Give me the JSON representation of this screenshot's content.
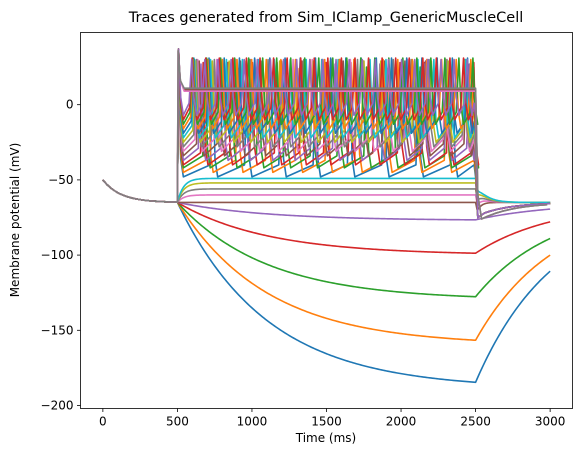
{
  "chart_data": {
    "type": "line",
    "title": "Traces generated from Sim_IClamp_GenericMuscleCell",
    "xlabel": "Time (ms)",
    "ylabel": "Membrane potential (mV)",
    "xlim": [
      -150,
      3150
    ],
    "ylim": [
      -202,
      48
    ],
    "xticks": [
      0,
      500,
      1000,
      1500,
      2000,
      2500,
      3000
    ],
    "yticks": [
      -200,
      -150,
      -100,
      -50,
      0
    ],
    "grid": false,
    "legend": "none",
    "stimulus": {
      "start": 500,
      "end": 2500
    },
    "initial_potential": -50,
    "rest_potential": -65,
    "colors": [
      "#1f77b4",
      "#ff7f0e",
      "#2ca02c",
      "#d62728",
      "#9467bd",
      "#8c564b",
      "#e377c2",
      "#7f7f7f",
      "#bcbd22",
      "#17becf"
    ],
    "traces": [
      {
        "kind": "hyper",
        "plateau": -189,
        "color": "#1f77b4"
      },
      {
        "kind": "hyper",
        "plateau": -160,
        "color": "#ff7f0e"
      },
      {
        "kind": "hyper",
        "plateau": -130,
        "color": "#2ca02c"
      },
      {
        "kind": "hyper",
        "plateau": -100,
        "color": "#d62728"
      },
      {
        "kind": "hyper",
        "plateau": -77,
        "color": "#9467bd"
      },
      {
        "kind": "flat",
        "plateau": -65,
        "color": "#8c564b"
      },
      {
        "kind": "flat",
        "plateau": -60,
        "color": "#e377c2"
      },
      {
        "kind": "flat",
        "plateau": -56,
        "color": "#7f7f7f"
      },
      {
        "kind": "flat",
        "plateau": -52,
        "color": "#bcbd22"
      },
      {
        "kind": "flat",
        "plateau": -49,
        "color": "#17becf"
      },
      {
        "kind": "spike",
        "period": 230,
        "trough": -48,
        "peak": 22,
        "color": "#1f77b4"
      },
      {
        "kind": "spike",
        "period": 200,
        "trough": -45,
        "peak": 24,
        "color": "#ff7f0e"
      },
      {
        "kind": "spike",
        "period": 180,
        "trough": -42,
        "peak": 25,
        "color": "#2ca02c"
      },
      {
        "kind": "spike",
        "period": 165,
        "trough": -40,
        "peak": 28,
        "color": "#d62728"
      },
      {
        "kind": "spike",
        "period": 150,
        "trough": -37,
        "peak": 27,
        "color": "#9467bd"
      },
      {
        "kind": "spike",
        "period": 138,
        "trough": -34,
        "peak": 29,
        "color": "#8c564b"
      },
      {
        "kind": "spike",
        "period": 128,
        "trough": -31,
        "peak": 30,
        "color": "#e377c2"
      },
      {
        "kind": "spike",
        "period": 120,
        "trough": -28,
        "peak": 30,
        "color": "#7f7f7f"
      },
      {
        "kind": "spike",
        "period": 113,
        "trough": -25,
        "peak": 29,
        "color": "#bcbd22"
      },
      {
        "kind": "spike",
        "period": 107,
        "trough": -22,
        "peak": 30,
        "color": "#17becf"
      },
      {
        "kind": "spike",
        "period": 102,
        "trough": -19,
        "peak": 31,
        "color": "#1f77b4"
      },
      {
        "kind": "spike",
        "period": 98,
        "trough": -16,
        "peak": 30,
        "color": "#ff7f0e"
      },
      {
        "kind": "spike",
        "period": 94,
        "trough": -13,
        "peak": 31,
        "color": "#2ca02c"
      },
      {
        "kind": "spike",
        "period": 91,
        "trough": -10,
        "peak": 31,
        "color": "#d62728"
      },
      {
        "kind": "spike",
        "period": 88,
        "trough": -7,
        "peak": 30,
        "color": "#9467bd"
      },
      {
        "kind": "block",
        "level": 10,
        "color": "#8c564b"
      },
      {
        "kind": "block",
        "level": 9,
        "color": "#e377c2"
      },
      {
        "kind": "block",
        "level": 11,
        "color": "#7f7f7f"
      }
    ]
  }
}
